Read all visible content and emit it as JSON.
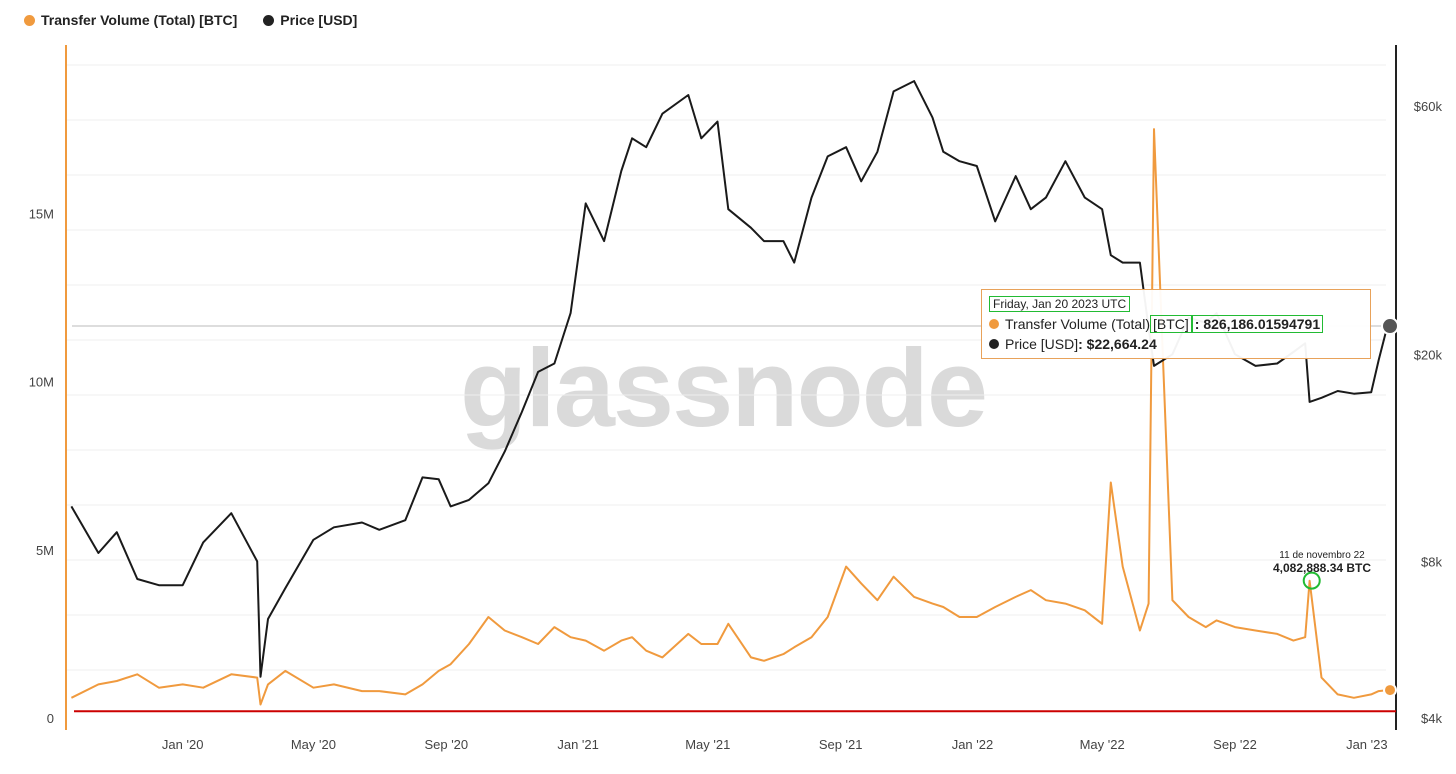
{
  "legend": [
    {
      "label": "Transfer Volume (Total) [BTC]",
      "color": "#f09a3e"
    },
    {
      "label": "Price [USD]",
      "color": "#222222"
    }
  ],
  "watermark": "glassnode",
  "tooltip": {
    "date": "Friday, Jan 20 2023 UTC",
    "series1_name": "Transfer Volume (Total) ",
    "series1_unit": "[BTC]",
    "series1_value": ": 826,186.01594791",
    "series2_name": "Price [USD]",
    "series2_value": ": $22,664.24"
  },
  "annotation": {
    "date": "11 de novembro 22",
    "value": "4,082,888.34 BTC"
  },
  "chart_data": {
    "type": "line",
    "x_ticks": [
      "Jan '20",
      "May '20",
      "Sep '20",
      "Jan '21",
      "May '21",
      "Sep '21",
      "Jan '22",
      "May '22",
      "Sep '22",
      "Jan '23"
    ],
    "y_left_ticks": [
      "0",
      "5M",
      "10M",
      "15M"
    ],
    "y_right_ticks": [
      "$4k",
      "$8k",
      "$20k",
      "$60k"
    ],
    "y_right_scale": "log",
    "x": [
      "2019-09-20",
      "2019-10-15",
      "2019-11-01",
      "2019-11-20",
      "2019-12-10",
      "2020-01-01",
      "2020-01-20",
      "2020-02-15",
      "2020-03-10",
      "2020-03-13",
      "2020-03-20",
      "2020-04-05",
      "2020-05-01",
      "2020-05-20",
      "2020-06-15",
      "2020-07-01",
      "2020-07-25",
      "2020-08-10",
      "2020-08-25",
      "2020-09-05",
      "2020-09-22",
      "2020-10-10",
      "2020-10-25",
      "2020-11-10",
      "2020-11-25",
      "2020-12-10",
      "2020-12-25",
      "2021-01-08",
      "2021-01-25",
      "2021-02-10",
      "2021-02-20",
      "2021-03-05",
      "2021-03-20",
      "2021-04-13",
      "2021-04-25",
      "2021-05-10",
      "2021-05-20",
      "2021-06-10",
      "2021-06-22",
      "2021-07-10",
      "2021-07-20",
      "2021-08-05",
      "2021-08-20",
      "2021-09-06",
      "2021-09-20",
      "2021-10-05",
      "2021-10-20",
      "2021-11-08",
      "2021-11-25",
      "2021-12-05",
      "2021-12-20",
      "2022-01-05",
      "2022-01-22",
      "2022-02-10",
      "2022-02-24",
      "2022-03-10",
      "2022-03-28",
      "2022-04-15",
      "2022-05-01",
      "2022-05-09",
      "2022-05-20",
      "2022-06-05",
      "2022-06-13",
      "2022-06-18",
      "2022-07-05",
      "2022-07-20",
      "2022-08-05",
      "2022-08-15",
      "2022-09-01",
      "2022-09-20",
      "2022-10-10",
      "2022-10-25",
      "2022-11-05",
      "2022-11-09",
      "2022-11-20",
      "2022-12-05",
      "2022-12-20",
      "2023-01-05",
      "2023-01-12",
      "2023-01-20"
    ],
    "series": [
      {
        "name": "Transfer Volume (Total) [BTC]",
        "axis": "left",
        "values": [
          0.6,
          1.0,
          1.1,
          1.3,
          0.9,
          1.0,
          0.9,
          1.3,
          1.2,
          0.4,
          1.0,
          1.4,
          0.9,
          1.0,
          0.8,
          0.8,
          0.7,
          1.0,
          1.4,
          1.6,
          2.2,
          3.0,
          2.6,
          2.4,
          2.2,
          2.7,
          2.4,
          2.3,
          2.0,
          2.3,
          2.4,
          2.0,
          1.8,
          2.5,
          2.2,
          2.2,
          2.8,
          1.8,
          1.7,
          1.9,
          2.1,
          2.4,
          3.0,
          4.5,
          4.0,
          3.5,
          4.2,
          3.6,
          3.4,
          3.3,
          3.0,
          3.0,
          3.3,
          3.6,
          3.8,
          3.5,
          3.4,
          3.2,
          2.8,
          7.0,
          4.5,
          2.6,
          3.4,
          17.5,
          3.5,
          3.0,
          2.7,
          2.9,
          2.7,
          2.6,
          2.5,
          2.3,
          2.4,
          4.08,
          1.2,
          0.7,
          0.6,
          0.7,
          0.8,
          0.83
        ]
      },
      {
        "name": "Price [USD]",
        "axis": "right",
        "values": [
          10200,
          8300,
          9100,
          7400,
          7200,
          7200,
          8700,
          9900,
          8000,
          4800,
          6200,
          7100,
          8800,
          9300,
          9500,
          9200,
          9600,
          11600,
          11500,
          10200,
          10500,
          11300,
          13000,
          15500,
          18500,
          19200,
          24000,
          39000,
          33000,
          45000,
          52000,
          50000,
          58000,
          63000,
          52000,
          56000,
          38000,
          35000,
          33000,
          33000,
          30000,
          40000,
          48000,
          50000,
          43000,
          49000,
          64000,
          67000,
          57000,
          49000,
          47000,
          46000,
          36000,
          44000,
          38000,
          40000,
          47000,
          40000,
          38000,
          31000,
          30000,
          30000,
          22500,
          19000,
          20000,
          23500,
          23000,
          24000,
          20000,
          19000,
          19200,
          20200,
          21000,
          16200,
          16500,
          17000,
          16800,
          16900,
          19500,
          22664.24
        ]
      }
    ],
    "horizontal_line": {
      "axis": "left",
      "value": 0.2,
      "color": "#cc0000"
    },
    "marker": {
      "x": "2022-11-11",
      "value": 4082888.34
    }
  }
}
